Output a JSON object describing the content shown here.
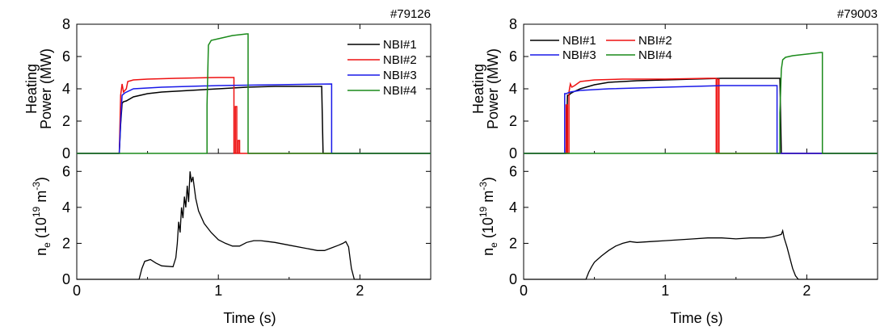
{
  "chart_data": [
    {
      "type": "line",
      "shot": "#79126",
      "xlabel": "Time (s)",
      "xlim": [
        0,
        2.5
      ],
      "xticks": [
        "0",
        "1",
        "2"
      ],
      "top": {
        "ylabel_line1": "Heating",
        "ylabel_line2": "Power (MW)",
        "ylim": [
          0,
          8
        ],
        "yticks": [
          "0",
          "2",
          "4",
          "6",
          "8"
        ],
        "legend_layout": "column",
        "series": [
          {
            "name": "NBI#1",
            "color": "#000000",
            "x": [
              0,
              0.3,
              0.31,
              0.32,
              0.33,
              0.35,
              0.4,
              0.5,
              0.6,
              0.8,
              1.0,
              1.2,
              1.4,
              1.6,
              1.73,
              1.74,
              1.75,
              2.5
            ],
            "y": [
              0,
              0,
              1.8,
              3.1,
              3.2,
              3.25,
              3.5,
              3.7,
              3.8,
              3.9,
              4.0,
              4.1,
              4.15,
              4.15,
              4.15,
              0,
              0,
              0
            ]
          },
          {
            "name": "NBI#2",
            "color": "#ee1111",
            "x": [
              0,
              0.3,
              0.31,
              0.32,
              0.33,
              0.35,
              0.36,
              0.4,
              0.5,
              0.7,
              1.0,
              1.11,
              1.11,
              1.12,
              1.12,
              1.13,
              1.13,
              1.14,
              1.14,
              1.15,
              1.15,
              2.5
            ],
            "y": [
              0,
              0,
              3.6,
              4.3,
              3.8,
              4.0,
              4.45,
              4.55,
              4.6,
              4.65,
              4.7,
              4.7,
              0,
              0,
              2.9,
              2.9,
              0,
              0,
              0.8,
              0.8,
              0,
              0
            ]
          },
          {
            "name": "NBI#3",
            "color": "#1818e8",
            "x": [
              0,
              0.3,
              0.31,
              0.32,
              0.34,
              0.4,
              0.6,
              1.0,
              1.4,
              1.8,
              1.8,
              2.5
            ],
            "y": [
              0,
              0,
              2.0,
              3.6,
              3.75,
              4.0,
              4.1,
              4.2,
              4.25,
              4.3,
              0,
              0
            ]
          },
          {
            "name": "NBI#4",
            "color": "#1a8a1a",
            "x": [
              0,
              0.92,
              0.92,
              0.93,
              0.95,
              1.0,
              1.1,
              1.15,
              1.2,
              1.21,
              1.21,
              2.5
            ],
            "y": [
              0,
              0,
              3.0,
              6.7,
              7.0,
              7.1,
              7.3,
              7.35,
              7.4,
              7.4,
              0,
              0
            ]
          }
        ]
      },
      "bottom": {
        "ylabel": "n",
        "ylabel_sub": "e",
        "ylabel_rest": " (10",
        "ylabel_sup1": "19",
        "ylabel_rest2": " m",
        "ylabel_sup2": "-3",
        "ylabel_close": ")",
        "ylim": [
          0,
          7
        ],
        "yticks": [
          "0",
          "2",
          "4",
          "6"
        ],
        "series": [
          {
            "name": "",
            "color": "#000000",
            "x": [
              0,
              0.44,
              0.46,
              0.48,
              0.52,
              0.56,
              0.6,
              0.68,
              0.7,
              0.71,
              0.72,
              0.73,
              0.74,
              0.75,
              0.76,
              0.77,
              0.78,
              0.79,
              0.8,
              0.81,
              0.82,
              0.84,
              0.86,
              0.9,
              0.95,
              1.0,
              1.05,
              1.1,
              1.15,
              1.2,
              1.25,
              1.3,
              1.35,
              1.4,
              1.5,
              1.6,
              1.7,
              1.75,
              1.8,
              1.85,
              1.88,
              1.9,
              1.92,
              1.93,
              1.94,
              1.96,
              2.5
            ],
            "y": [
              0,
              0,
              0.6,
              1.0,
              1.1,
              0.9,
              0.75,
              0.7,
              1.2,
              2.0,
              3.2,
              2.6,
              4.0,
              3.4,
              4.6,
              4.0,
              5.2,
              4.3,
              6.0,
              5.4,
              5.7,
              4.5,
              3.8,
              3.1,
              2.6,
              2.2,
              2.0,
              1.85,
              1.85,
              2.05,
              2.15,
              2.15,
              2.1,
              2.05,
              1.9,
              1.75,
              1.6,
              1.6,
              1.75,
              1.9,
              2.0,
              2.1,
              1.8,
              1.2,
              0.6,
              0,
              0
            ]
          }
        ]
      }
    },
    {
      "type": "line",
      "shot": "#79003",
      "xlabel": "Time (s)",
      "xlim": [
        0,
        2.5
      ],
      "xticks": [
        "0",
        "1",
        "2"
      ],
      "top": {
        "ylabel_line1": "Heating",
        "ylabel_line2": "Power (MW)",
        "ylim": [
          0,
          8
        ],
        "yticks": [
          "0",
          "2",
          "4",
          "6",
          "8"
        ],
        "legend_layout": "grid",
        "series": [
          {
            "name": "NBI#1",
            "color": "#000000",
            "x": [
              0,
              0.3,
              0.305,
              0.31,
              0.32,
              0.33,
              0.35,
              0.4,
              0.5,
              0.6,
              0.8,
              1.0,
              1.2,
              1.4,
              1.6,
              1.8,
              1.81,
              1.82,
              2.5
            ],
            "y": [
              0,
              0,
              2.2,
              3.6,
              3.6,
              3.7,
              3.8,
              4.0,
              4.25,
              4.4,
              4.5,
              4.55,
              4.6,
              4.65,
              4.65,
              4.65,
              4.65,
              0,
              0
            ]
          },
          {
            "name": "NBI#2",
            "color": "#ee1111",
            "x": [
              0,
              0.3,
              0.3,
              0.31,
              0.31,
              0.32,
              0.32,
              0.33,
              0.34,
              0.36,
              0.4,
              0.5,
              0.7,
              1.0,
              1.3,
              1.36,
              1.36,
              1.37,
              1.37,
              1.38,
              1.38,
              2.5
            ],
            "y": [
              0,
              0,
              3.0,
              3.0,
              0,
              0,
              3.8,
              4.3,
              4.1,
              4.2,
              4.45,
              4.55,
              4.6,
              4.6,
              4.65,
              4.65,
              0,
              0,
              4.6,
              4.6,
              0,
              0
            ]
          },
          {
            "name": "NBI#3",
            "color": "#1818e8",
            "x": [
              0,
              0.29,
              0.29,
              0.3,
              0.33,
              0.4,
              0.6,
              1.0,
              1.4,
              1.78,
              1.79,
              1.79,
              2.5
            ],
            "y": [
              0,
              0,
              3.7,
              3.7,
              3.8,
              3.9,
              4.0,
              4.1,
              4.2,
              4.2,
              4.2,
              0,
              0
            ]
          },
          {
            "name": "NBI#4",
            "color": "#1a8a1a",
            "x": [
              0,
              1.81,
              1.81,
              1.82,
              1.83,
              1.85,
              1.9,
              2.0,
              2.1,
              2.11,
              2.11,
              2.5
            ],
            "y": [
              0,
              0,
              2.5,
              5.2,
              5.8,
              5.95,
              6.05,
              6.15,
              6.25,
              6.25,
              0,
              0
            ]
          }
        ]
      },
      "bottom": {
        "ylabel": "n",
        "ylabel_sub": "e",
        "ylabel_rest": " (10",
        "ylabel_sup1": "19",
        "ylabel_rest2": " m",
        "ylabel_sup2": "-3",
        "ylabel_close": ")",
        "ylim": [
          0,
          7
        ],
        "yticks": [
          "0",
          "2",
          "4",
          "6"
        ],
        "series": [
          {
            "name": "",
            "color": "#000000",
            "x": [
              0,
              0.44,
              0.46,
              0.48,
              0.5,
              0.55,
              0.6,
              0.65,
              0.7,
              0.75,
              0.8,
              0.9,
              1.0,
              1.1,
              1.2,
              1.3,
              1.4,
              1.5,
              1.6,
              1.7,
              1.75,
              1.8,
              1.82,
              1.83,
              1.84,
              1.86,
              1.88,
              1.9,
              1.92,
              1.94,
              2.5
            ],
            "y": [
              0,
              0,
              0.4,
              0.7,
              0.95,
              1.3,
              1.6,
              1.85,
              2.0,
              2.1,
              2.05,
              2.1,
              2.15,
              2.2,
              2.25,
              2.3,
              2.3,
              2.25,
              2.3,
              2.3,
              2.35,
              2.45,
              2.5,
              2.7,
              2.3,
              1.8,
              1.2,
              0.6,
              0.2,
              0,
              0
            ]
          }
        ]
      }
    }
  ]
}
